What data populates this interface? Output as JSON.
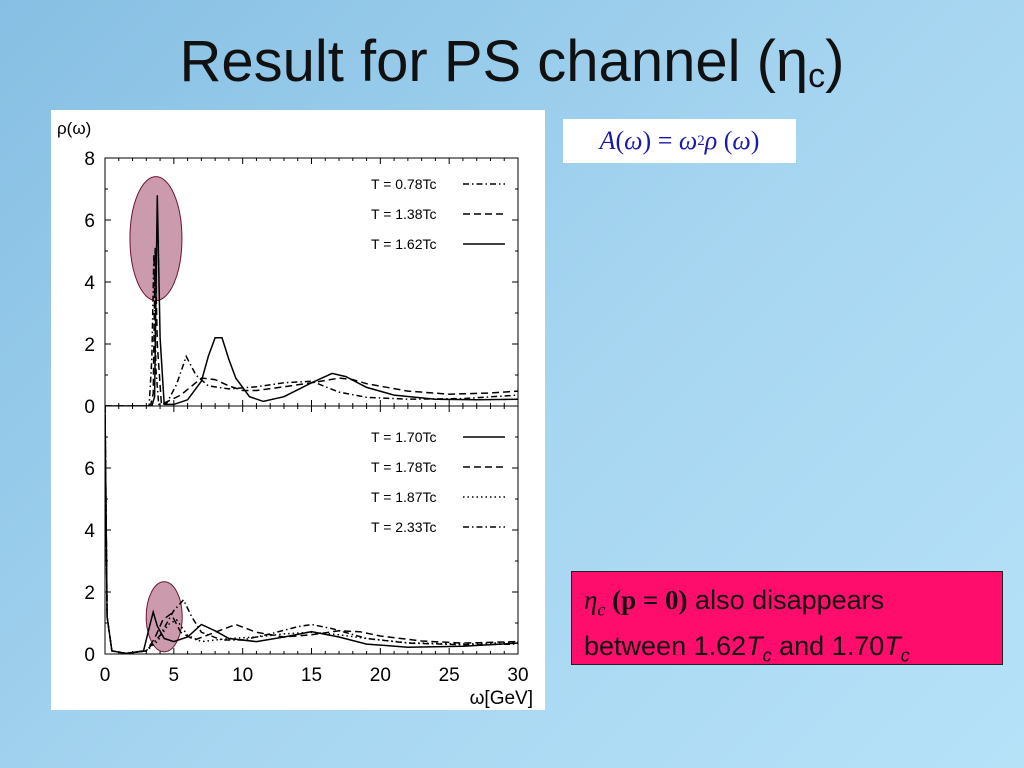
{
  "slide": {
    "title_main": "Result for PS channel (",
    "title_eta": "η",
    "title_sub": "c",
    "title_close": ")",
    "formula": {
      "lhs": "A",
      "arg_open": "(",
      "omega1": "ω",
      "arg_close": ")",
      "equals": " = ",
      "omega2": "ω",
      "exp": "2",
      "rho": "ρ",
      "arg2_open": " (",
      "omega3": "ω",
      "arg2_close": ")"
    },
    "note": {
      "eta": "η",
      "eta_sub": "c",
      "paren_text": " (p = 0)",
      "line1_rest": " also disappears",
      "line2_a": "between 1.62",
      "T1": "T",
      "sub1": "c",
      "line2_b": " and 1.70",
      "T2": "T",
      "sub2": "c"
    }
  },
  "chart_data": [
    {
      "type": "line",
      "ylabel": "ρ(ω)",
      "xlim": [
        0,
        30
      ],
      "ylim": [
        0,
        8
      ],
      "yticks": [
        0,
        2,
        4,
        6,
        8
      ],
      "highlight": {
        "x_center": 3.7,
        "y_center": 5.4,
        "note": "shaded ellipse"
      },
      "series": [
        {
          "name": "T = 0.78Tc",
          "style": "dashdot",
          "points": [
            [
              0,
              0
            ],
            [
              3.2,
              0
            ],
            [
              3.4,
              1.5
            ],
            [
              3.55,
              4.9
            ],
            [
              3.7,
              1.2
            ],
            [
              3.9,
              0.05
            ],
            [
              4.5,
              0.1
            ],
            [
              5.2,
              0.7
            ],
            [
              5.9,
              1.6
            ],
            [
              6.6,
              1.0
            ],
            [
              7.5,
              0.65
            ],
            [
              9,
              0.55
            ],
            [
              11,
              0.62
            ],
            [
              13,
              0.75
            ],
            [
              15,
              0.8
            ],
            [
              17,
              0.45
            ],
            [
              19,
              0.28
            ],
            [
              22,
              0.22
            ],
            [
              26,
              0.24
            ],
            [
              30,
              0.35
            ]
          ]
        },
        {
          "name": "T = 1.38Tc",
          "style": "dashed",
          "points": [
            [
              0,
              0
            ],
            [
              3.3,
              0
            ],
            [
              3.5,
              0.4
            ],
            [
              3.65,
              5.1
            ],
            [
              3.8,
              2.0
            ],
            [
              4.1,
              0.05
            ],
            [
              5.5,
              0.35
            ],
            [
              7,
              0.9
            ],
            [
              8,
              0.85
            ],
            [
              9,
              0.65
            ],
            [
              10,
              0.5
            ],
            [
              11,
              0.5
            ],
            [
              13,
              0.62
            ],
            [
              15,
              0.75
            ],
            [
              17,
              0.9
            ],
            [
              18,
              0.85
            ],
            [
              19,
              0.72
            ],
            [
              22,
              0.48
            ],
            [
              25,
              0.38
            ],
            [
              28,
              0.42
            ],
            [
              30,
              0.48
            ]
          ]
        },
        {
          "name": "T = 1.62Tc",
          "style": "solid",
          "points": [
            [
              0,
              0
            ],
            [
              3.4,
              0
            ],
            [
              3.6,
              0.3
            ],
            [
              3.8,
              6.8
            ],
            [
              4.0,
              2.2
            ],
            [
              4.3,
              0.05
            ],
            [
              5,
              0.05
            ],
            [
              6,
              0.2
            ],
            [
              7,
              0.8
            ],
            [
              7.5,
              1.6
            ],
            [
              8,
              2.2
            ],
            [
              8.5,
              2.2
            ],
            [
              9,
              1.5
            ],
            [
              9.5,
              0.9
            ],
            [
              10.5,
              0.3
            ],
            [
              11.5,
              0.15
            ],
            [
              13,
              0.3
            ],
            [
              15,
              0.75
            ],
            [
              16.5,
              1.05
            ],
            [
              17.5,
              0.95
            ],
            [
              19,
              0.6
            ],
            [
              21,
              0.35
            ],
            [
              24,
              0.22
            ],
            [
              27,
              0.2
            ],
            [
              30,
              0.22
            ]
          ]
        }
      ]
    },
    {
      "type": "line",
      "xlabel": "ω[GeV]",
      "xlim": [
        0,
        30
      ],
      "ylim": [
        0,
        8
      ],
      "xticks": [
        0,
        5,
        10,
        15,
        20,
        25,
        30
      ],
      "yticks": [
        0,
        2,
        4,
        6
      ],
      "highlight": {
        "x_center": 4.3,
        "y_center": 1.2,
        "note": "shaded ellipse"
      },
      "series": [
        {
          "name": "T = 1.70Tc",
          "style": "solid",
          "points": [
            [
              0,
              8
            ],
            [
              0.15,
              1.2
            ],
            [
              0.5,
              0.1
            ],
            [
              1.5,
              0.02
            ],
            [
              2.8,
              0.1
            ],
            [
              3.3,
              1.0
            ],
            [
              3.5,
              1.35
            ],
            [
              3.8,
              0.9
            ],
            [
              4.3,
              0.5
            ],
            [
              5,
              0.4
            ],
            [
              6,
              0.55
            ],
            [
              7,
              0.95
            ],
            [
              8,
              0.75
            ],
            [
              9,
              0.5
            ],
            [
              11,
              0.4
            ],
            [
              13,
              0.55
            ],
            [
              15,
              0.72
            ],
            [
              17,
              0.55
            ],
            [
              19,
              0.32
            ],
            [
              22,
              0.22
            ],
            [
              26,
              0.25
            ],
            [
              30,
              0.35
            ]
          ]
        },
        {
          "name": "T = 1.78Tc",
          "style": "dashed",
          "points": [
            [
              0,
              8
            ],
            [
              0.15,
              1.2
            ],
            [
              0.5,
              0.1
            ],
            [
              1.5,
              0.02
            ],
            [
              3,
              0.1
            ],
            [
              3.6,
              0.5
            ],
            [
              4.2,
              1.1
            ],
            [
              4.8,
              1.3
            ],
            [
              5.5,
              0.7
            ],
            [
              6.5,
              0.45
            ],
            [
              8,
              0.7
            ],
            [
              9.5,
              0.95
            ],
            [
              11,
              0.7
            ],
            [
              13,
              0.55
            ],
            [
              15,
              0.62
            ],
            [
              17,
              0.75
            ],
            [
              18.5,
              0.72
            ],
            [
              20,
              0.58
            ],
            [
              23,
              0.42
            ],
            [
              26,
              0.35
            ],
            [
              30,
              0.4
            ]
          ]
        },
        {
          "name": "T = 1.87Tc",
          "style": "dotted",
          "points": [
            [
              0,
              8
            ],
            [
              0.15,
              1.2
            ],
            [
              0.5,
              0.1
            ],
            [
              1.5,
              0.02
            ],
            [
              3,
              0.1
            ],
            [
              3.8,
              0.4
            ],
            [
              4.6,
              0.95
            ],
            [
              5.2,
              1.1
            ],
            [
              6,
              0.6
            ],
            [
              7,
              0.4
            ],
            [
              9,
              0.5
            ],
            [
              11,
              0.55
            ],
            [
              13,
              0.65
            ],
            [
              15,
              0.7
            ],
            [
              17,
              0.62
            ],
            [
              19,
              0.5
            ],
            [
              22,
              0.36
            ],
            [
              26,
              0.32
            ],
            [
              30,
              0.38
            ]
          ]
        },
        {
          "name": "T = 2.33Tc",
          "style": "dashdot",
          "points": [
            [
              0,
              8
            ],
            [
              0.15,
              1.2
            ],
            [
              0.5,
              0.1
            ],
            [
              1.5,
              0.02
            ],
            [
              3,
              0.1
            ],
            [
              4,
              0.6
            ],
            [
              5,
              1.4
            ],
            [
              5.7,
              1.75
            ],
            [
              6.3,
              1.2
            ],
            [
              7,
              0.7
            ],
            [
              8.5,
              0.45
            ],
            [
              10,
              0.45
            ],
            [
              12,
              0.65
            ],
            [
              14,
              0.88
            ],
            [
              15,
              0.95
            ],
            [
              16.5,
              0.82
            ],
            [
              19,
              0.5
            ],
            [
              22,
              0.35
            ],
            [
              26,
              0.3
            ],
            [
              30,
              0.32
            ]
          ]
        }
      ]
    }
  ]
}
